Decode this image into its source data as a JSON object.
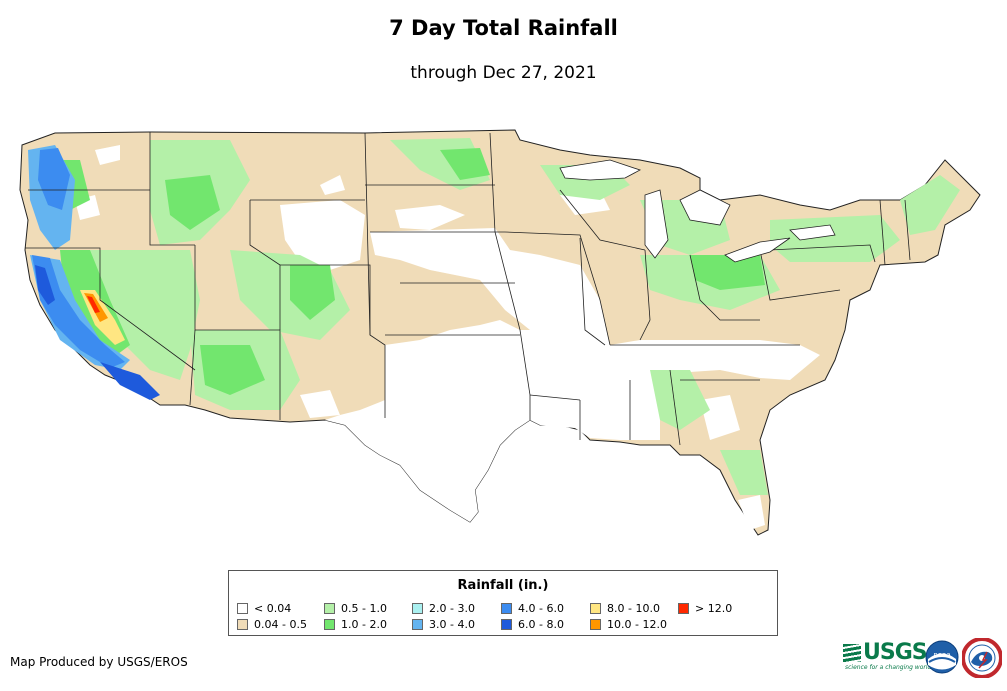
{
  "title": "7 Day Total Rainfall",
  "subtitle": "through Dec 27, 2021",
  "legend": {
    "title": "Rainfall (in.)",
    "items": [
      {
        "label": "< 0.04",
        "color": "#ffffff"
      },
      {
        "label": "0.04 - 0.5",
        "color": "#f0dcb8"
      },
      {
        "label": "0.5 - 1.0",
        "color": "#b4f0a8"
      },
      {
        "label": "1.0 - 2.0",
        "color": "#72e66e"
      },
      {
        "label": "2.0 - 3.0",
        "color": "#aaf0f0"
      },
      {
        "label": "3.0 - 4.0",
        "color": "#64b4f0"
      },
      {
        "label": "4.0 - 6.0",
        "color": "#3c8cf0"
      },
      {
        "label": "6.0 - 8.0",
        "color": "#1e5adc"
      },
      {
        "label": "8.0 - 10.0",
        "color": "#ffe682"
      },
      {
        "label": "10.0 - 12.0",
        "color": "#ff9600"
      },
      {
        "label": "> 12.0",
        "color": "#ff2800"
      }
    ]
  },
  "credit": "Map Produced by USGS/EROS",
  "logos": {
    "usgs": "USGS",
    "usgs_tagline": "science for a changing world",
    "noaa": "noaa",
    "nws_icon": "nws-logo-icon"
  }
}
